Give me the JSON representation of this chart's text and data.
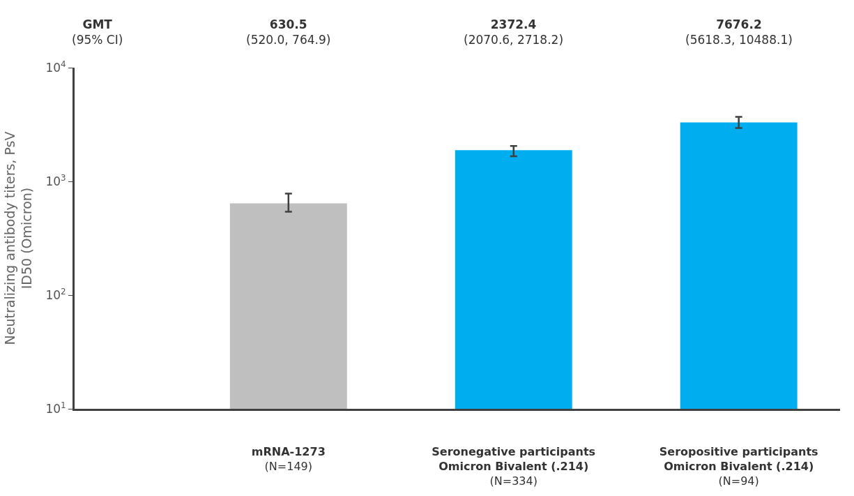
{
  "chart_data": {
    "type": "bar",
    "ylabel": "Neutralizing antibody titers, PsV\nID50 (Omicron)",
    "categories": [
      "mRNA-1273\n(N=149)",
      "Seronegative participants\nOmicron Bivalent (.214)\n(N=334)",
      "Seropositive participants\nOmicron Bivalent (.214)\n(N=94)"
    ],
    "values": [
      640,
      1880,
      3300
    ],
    "colors": [
      "#bfbfbf",
      "#00aeef",
      "#00aeef"
    ],
    "errors": [
      [
        540,
        780
      ],
      [
        1660,
        2050
      ],
      [
        2950,
        3700
      ]
    ],
    "log": true,
    "ylim": [
      10,
      10000
    ],
    "yticks": [
      {
        "value": 10,
        "label": "10$^{1}$"
      },
      {
        "value": 100,
        "label": "10$^{2}$"
      },
      {
        "value": 1000,
        "label": "10$^{3}$"
      },
      {
        "value": 10000,
        "label": "10$^{4}$"
      }
    ],
    "annotations": [
      "GMT\n(95% CI)",
      "630.5\n(520.0, 764.9)",
      "2372.4\n(2070.6, 2718.2)",
      "7676.2\n(5618.3, 10488.1)"
    ]
  }
}
